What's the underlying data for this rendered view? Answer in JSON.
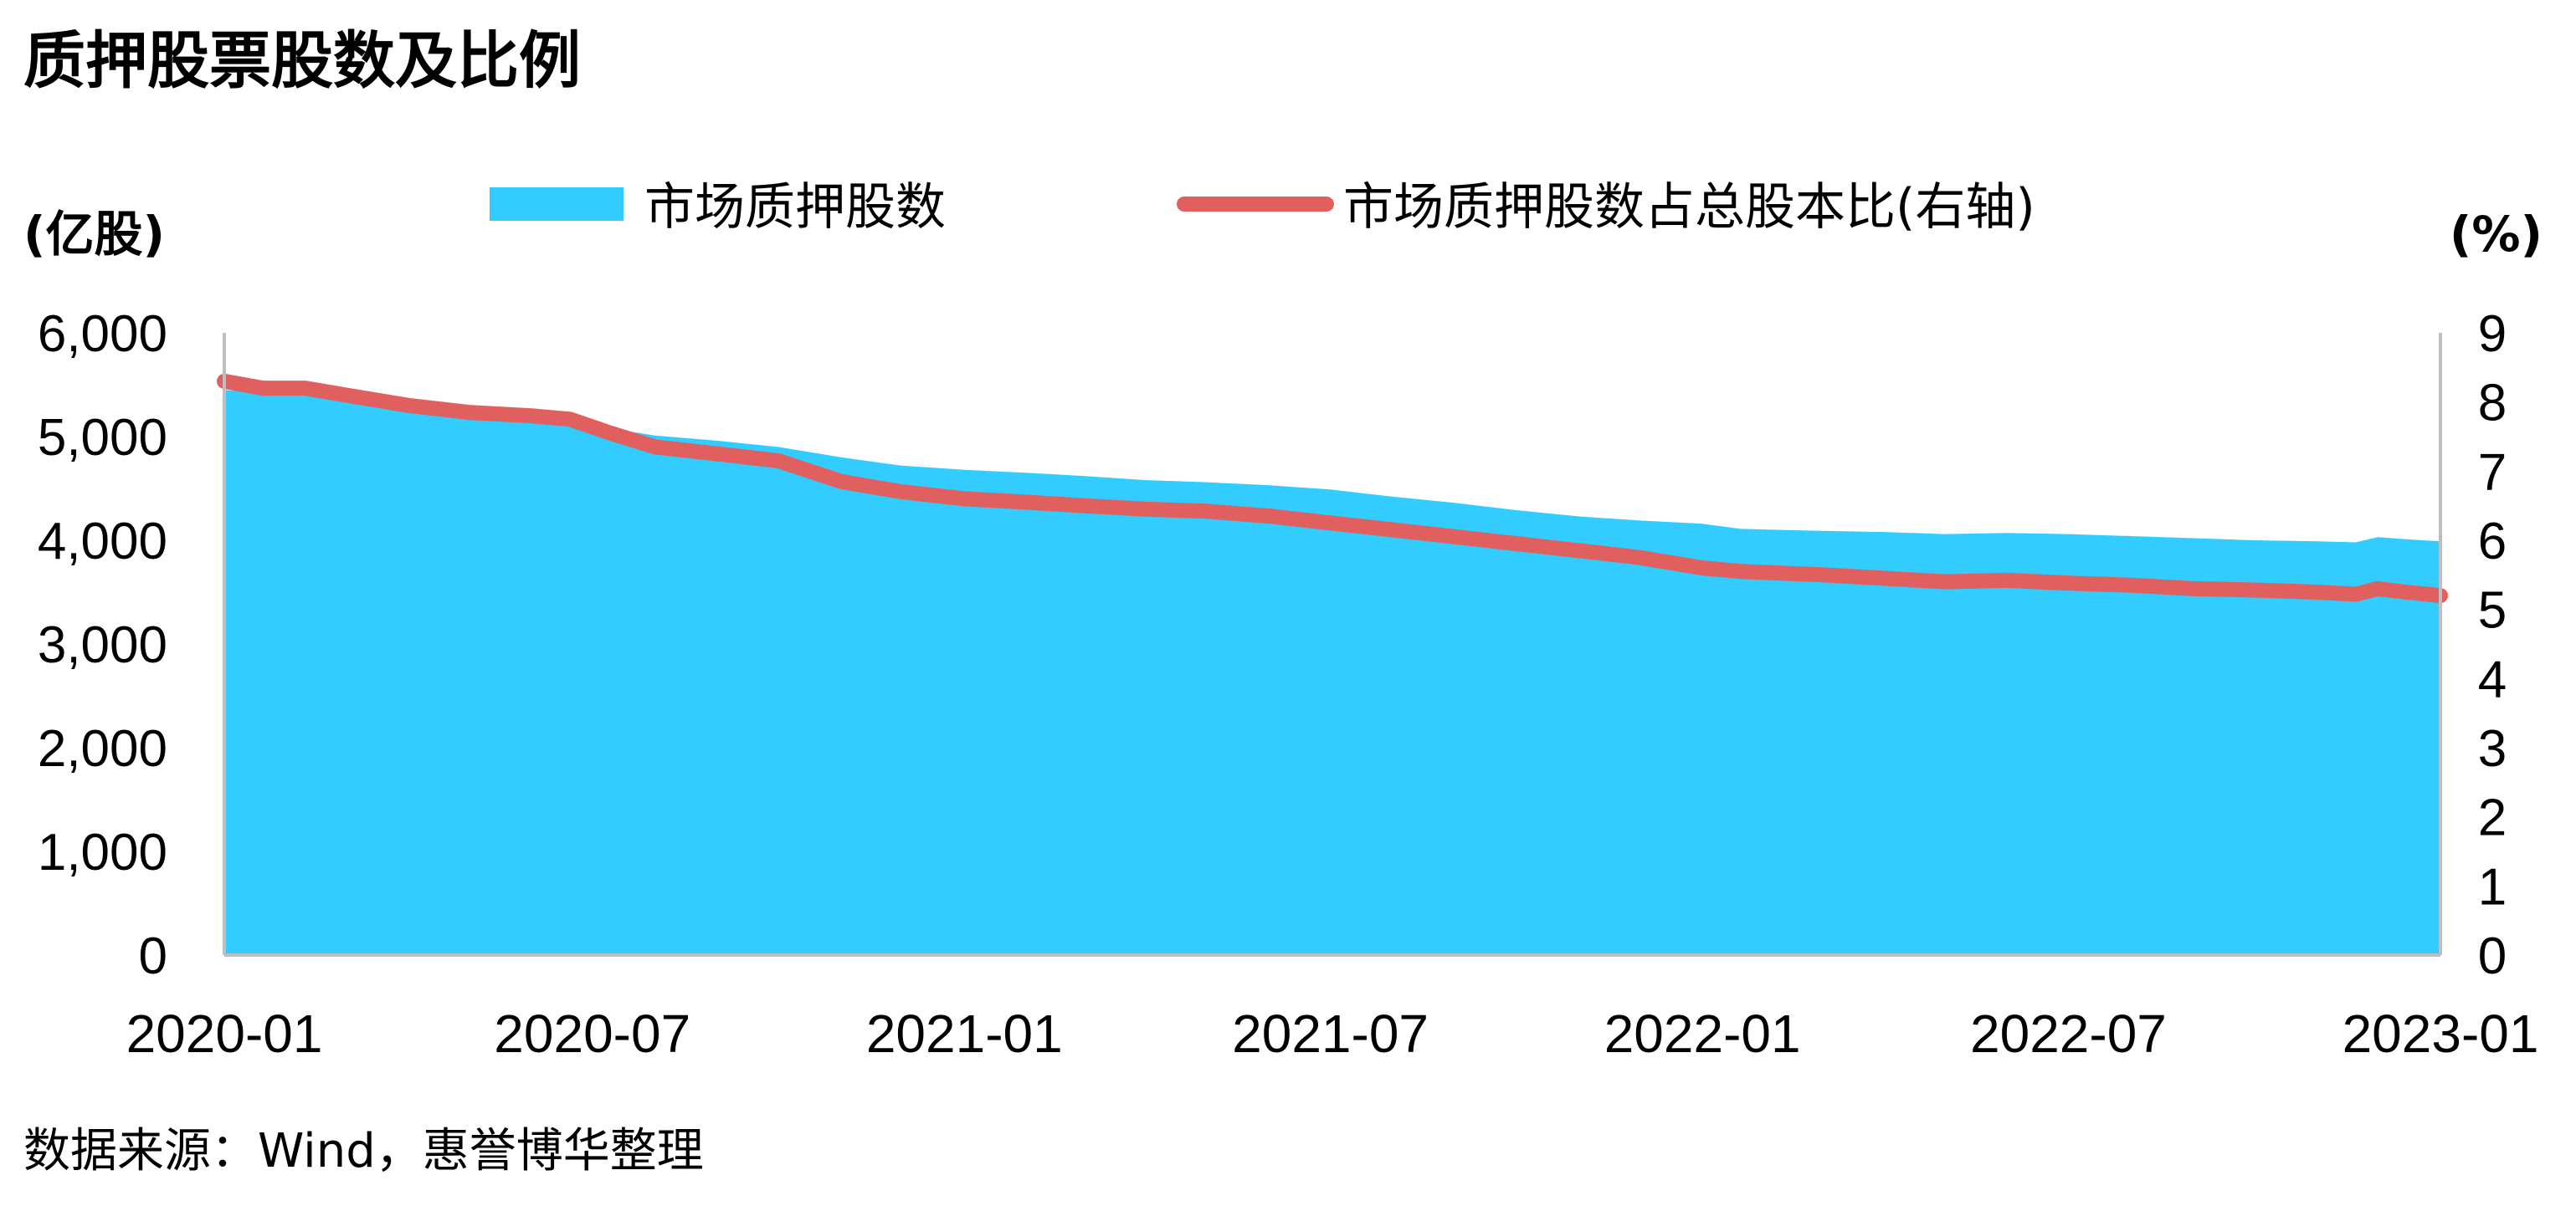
{
  "chart_data": {
    "type": "area",
    "title": "质押股票股数及比例",
    "left_unit": "(亿股)",
    "right_unit": "(%)",
    "legend": {
      "area_label": "市场质押股数",
      "line_label": "市场质押股数占总股本比(右轴)"
    },
    "y_left": {
      "min": 0,
      "max": 6000,
      "ticks": [
        "0",
        "1,000",
        "2,000",
        "3,000",
        "4,000",
        "5,000",
        "6,000"
      ]
    },
    "y_right": {
      "min": 0,
      "max": 9,
      "ticks": [
        "0",
        "1",
        "2",
        "3",
        "4",
        "5",
        "6",
        "7",
        "8",
        "9"
      ]
    },
    "x": {
      "start": "2020-01",
      "end": "2023-01",
      "tick_labels": [
        "2020-01",
        "2020-07",
        "2021-01",
        "2021-07",
        "2022-01",
        "2022-07",
        "2023-01"
      ]
    },
    "series": [
      {
        "name": "市场质押股数",
        "axis": "left",
        "color": "#33CCFF",
        "points": [
          [
            "2020-01-01",
            5450
          ],
          [
            "2020-01-20",
            5420
          ],
          [
            "2020-02-10",
            5400
          ],
          [
            "2020-03-01",
            5330
          ],
          [
            "2020-04-01",
            5280
          ],
          [
            "2020-05-01",
            5230
          ],
          [
            "2020-06-01",
            5210
          ],
          [
            "2020-06-20",
            5180
          ],
          [
            "2020-07-10",
            5080
          ],
          [
            "2020-08-01",
            5010
          ],
          [
            "2020-09-01",
            4960
          ],
          [
            "2020-10-01",
            4900
          ],
          [
            "2020-11-01",
            4800
          ],
          [
            "2020-12-01",
            4720
          ],
          [
            "2021-01-01",
            4680
          ],
          [
            "2021-02-01",
            4650
          ],
          [
            "2021-03-01",
            4620
          ],
          [
            "2021-04-01",
            4580
          ],
          [
            "2021-05-01",
            4560
          ],
          [
            "2021-06-01",
            4530
          ],
          [
            "2021-07-01",
            4490
          ],
          [
            "2021-08-01",
            4420
          ],
          [
            "2021-09-01",
            4360
          ],
          [
            "2021-10-01",
            4290
          ],
          [
            "2021-11-01",
            4230
          ],
          [
            "2021-12-01",
            4190
          ],
          [
            "2022-01-01",
            4160
          ],
          [
            "2022-01-20",
            4110
          ],
          [
            "2022-03-01",
            4090
          ],
          [
            "2022-04-01",
            4080
          ],
          [
            "2022-05-01",
            4060
          ],
          [
            "2022-06-01",
            4070
          ],
          [
            "2022-07-01",
            4060
          ],
          [
            "2022-08-01",
            4040
          ],
          [
            "2022-09-01",
            4020
          ],
          [
            "2022-10-01",
            4000
          ],
          [
            "2022-11-01",
            3990
          ],
          [
            "2022-11-20",
            3980
          ],
          [
            "2022-12-01",
            4030
          ],
          [
            "2022-12-15",
            4010
          ],
          [
            "2023-01-01",
            3990
          ]
        ]
      },
      {
        "name": "市场质押股数占总股本比(右轴)",
        "axis": "right",
        "color": "#E06060",
        "points": [
          [
            "2020-01-01",
            8.3
          ],
          [
            "2020-01-20",
            8.2
          ],
          [
            "2020-02-10",
            8.2
          ],
          [
            "2020-03-01",
            8.1
          ],
          [
            "2020-04-01",
            7.95
          ],
          [
            "2020-05-01",
            7.85
          ],
          [
            "2020-06-01",
            7.8
          ],
          [
            "2020-06-20",
            7.75
          ],
          [
            "2020-07-10",
            7.55
          ],
          [
            "2020-08-01",
            7.35
          ],
          [
            "2020-09-01",
            7.25
          ],
          [
            "2020-10-01",
            7.15
          ],
          [
            "2020-11-01",
            6.85
          ],
          [
            "2020-12-01",
            6.7
          ],
          [
            "2021-01-01",
            6.6
          ],
          [
            "2021-02-01",
            6.55
          ],
          [
            "2021-03-01",
            6.5
          ],
          [
            "2021-04-01",
            6.45
          ],
          [
            "2021-05-01",
            6.42
          ],
          [
            "2021-06-01",
            6.35
          ],
          [
            "2021-07-01",
            6.25
          ],
          [
            "2021-08-01",
            6.15
          ],
          [
            "2021-09-01",
            6.05
          ],
          [
            "2021-10-01",
            5.95
          ],
          [
            "2021-11-01",
            5.85
          ],
          [
            "2021-12-01",
            5.75
          ],
          [
            "2022-01-01",
            5.6
          ],
          [
            "2022-01-20",
            5.55
          ],
          [
            "2022-03-01",
            5.5
          ],
          [
            "2022-04-01",
            5.45
          ],
          [
            "2022-05-01",
            5.4
          ],
          [
            "2022-06-01",
            5.42
          ],
          [
            "2022-07-01",
            5.38
          ],
          [
            "2022-08-01",
            5.35
          ],
          [
            "2022-09-01",
            5.3
          ],
          [
            "2022-10-01",
            5.28
          ],
          [
            "2022-11-01",
            5.25
          ],
          [
            "2022-11-20",
            5.22
          ],
          [
            "2022-12-01",
            5.3
          ],
          [
            "2022-12-15",
            5.25
          ],
          [
            "2023-01-01",
            5.2
          ]
        ]
      }
    ]
  },
  "source": "数据来源：Wind，惠誉博华整理"
}
